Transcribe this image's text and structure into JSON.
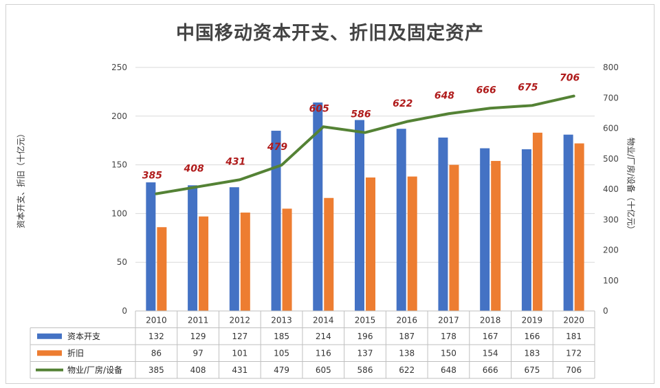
{
  "chart_data": {
    "type": "bar",
    "title": "中国移动资本开支、折旧及固定资产",
    "categories": [
      "2010",
      "2011",
      "2012",
      "2013",
      "2014",
      "2015",
      "2016",
      "2017",
      "2018",
      "2019",
      "2020"
    ],
    "ylabel_left": "资本开支、折旧（十亿元）",
    "ylabel_right": "物业/厂房/设备（十亿元）",
    "ylim_left": [
      0,
      250
    ],
    "ylim_right": [
      0,
      800
    ],
    "yticks_left": [
      "0",
      "50",
      "100",
      "150",
      "200",
      "250"
    ],
    "yticks_right": [
      "0",
      "100",
      "200",
      "300",
      "400",
      "500",
      "600",
      "700",
      "800"
    ],
    "grid": true,
    "series": [
      {
        "name": "资本开支",
        "type": "bar",
        "axis": "left",
        "color": "#4472c4",
        "values": [
          132,
          129,
          127,
          185,
          214,
          196,
          187,
          178,
          167,
          166,
          181
        ]
      },
      {
        "name": "折旧",
        "type": "bar",
        "axis": "left",
        "color": "#ed7d31",
        "values": [
          86,
          97,
          101,
          105,
          116,
          137,
          138,
          150,
          154,
          183,
          172
        ]
      },
      {
        "name": "物业/厂房/设备",
        "type": "line",
        "axis": "right",
        "color": "#548235",
        "values": [
          385,
          408,
          431,
          479,
          605,
          586,
          622,
          648,
          666,
          675,
          706
        ],
        "data_labels": true
      }
    ],
    "legend": "data-table-below"
  }
}
